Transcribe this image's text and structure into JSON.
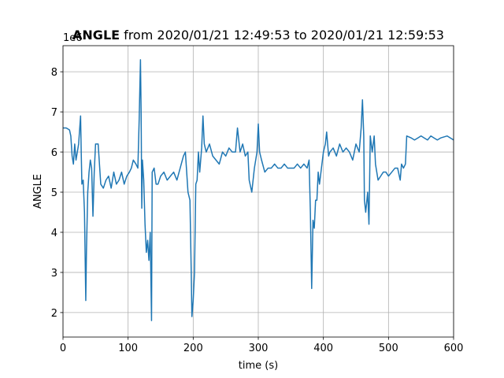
{
  "chart_data": {
    "type": "line",
    "title_bold": "ANGLE",
    "title": "from 2020/01/21 12:49:53 to 2020/01/21 12:59:53",
    "xlabel": "time (s)",
    "ylabel": "ANGLE",
    "offset_label": "1e6",
    "color": "#1f77b4",
    "grid": true,
    "xlim": [
      0,
      600
    ],
    "xticks": [
      0,
      100,
      200,
      300,
      400,
      500,
      600
    ],
    "ylim": [
      1.39,
      8.65
    ],
    "yticks": [
      2,
      3,
      4,
      5,
      6,
      7,
      8
    ],
    "x": [
      0,
      5,
      10,
      12,
      14,
      16,
      18,
      20,
      24,
      27,
      28,
      29,
      31,
      33,
      35,
      36,
      38,
      40,
      42,
      44,
      46,
      48,
      50,
      54,
      56,
      58,
      62,
      66,
      70,
      74,
      78,
      82,
      86,
      90,
      94,
      98,
      102,
      105,
      108,
      112,
      115,
      117,
      119,
      120,
      121,
      122,
      124,
      126,
      128,
      130,
      132,
      134,
      136,
      137,
      140,
      143,
      146,
      150,
      155,
      160,
      165,
      170,
      175,
      180,
      185,
      188,
      192,
      195,
      197,
      198,
      200,
      202,
      204,
      206,
      208,
      210,
      213,
      215,
      217,
      220,
      225,
      230,
      235,
      240,
      245,
      250,
      255,
      260,
      265,
      268,
      272,
      276,
      280,
      284,
      286,
      290,
      294,
      298,
      300,
      302,
      305,
      310,
      315,
      320,
      325,
      330,
      335,
      340,
      345,
      350,
      355,
      360,
      365,
      370,
      375,
      378,
      380,
      382,
      384,
      386,
      388,
      390,
      392,
      394,
      397,
      400,
      403,
      405,
      408,
      410,
      415,
      420,
      425,
      430,
      435,
      440,
      445,
      450,
      455,
      458,
      460,
      462,
      463,
      465,
      468,
      470,
      472,
      475,
      478,
      480,
      484,
      488,
      492,
      496,
      500,
      505,
      510,
      514,
      518,
      520,
      523,
      526,
      528,
      535,
      540,
      545,
      550,
      555,
      560,
      565,
      570,
      575,
      580,
      590,
      600
    ],
    "values": [
      6.6,
      6.6,
      6.55,
      6.4,
      5.9,
      5.7,
      6.2,
      5.8,
      6.2,
      6.9,
      6.0,
      5.2,
      5.3,
      4.5,
      2.3,
      3.5,
      5.0,
      5.5,
      5.8,
      5.6,
      4.4,
      5.5,
      6.2,
      6.2,
      5.7,
      5.2,
      5.1,
      5.3,
      5.4,
      5.1,
      5.5,
      5.2,
      5.3,
      5.5,
      5.2,
      5.4,
      5.5,
      5.6,
      5.8,
      5.7,
      5.6,
      6.8,
      8.3,
      7.0,
      4.6,
      5.8,
      5.3,
      4.2,
      3.5,
      3.8,
      3.3,
      4.0,
      1.8,
      5.5,
      5.6,
      5.2,
      5.2,
      5.4,
      5.5,
      5.3,
      5.4,
      5.5,
      5.3,
      5.6,
      5.9,
      6.0,
      5.0,
      4.8,
      3.0,
      1.9,
      2.3,
      3.0,
      5.2,
      5.3,
      6.0,
      5.5,
      6.1,
      6.9,
      6.2,
      6.0,
      6.2,
      5.9,
      5.8,
      5.7,
      6.0,
      5.9,
      6.1,
      6.0,
      6.0,
      6.6,
      6.0,
      6.2,
      5.9,
      6.0,
      5.3,
      5.0,
      5.6,
      6.0,
      6.7,
      6.0,
      5.8,
      5.5,
      5.6,
      5.6,
      5.7,
      5.6,
      5.6,
      5.7,
      5.6,
      5.6,
      5.6,
      5.7,
      5.6,
      5.7,
      5.6,
      5.8,
      4.5,
      2.6,
      4.3,
      4.1,
      4.8,
      4.8,
      5.5,
      5.2,
      5.6,
      6.0,
      6.2,
      6.5,
      5.9,
      6.0,
      6.1,
      5.9,
      6.2,
      6.0,
      6.1,
      6.0,
      5.8,
      6.2,
      6.0,
      6.6,
      7.3,
      6.4,
      4.8,
      4.5,
      5.0,
      4.2,
      6.4,
      6.0,
      6.4,
      5.7,
      5.3,
      5.4,
      5.5,
      5.5,
      5.4,
      5.5,
      5.6,
      5.6,
      5.3,
      5.7,
      5.6,
      5.7,
      6.4,
      6.35,
      6.3,
      6.35,
      6.4,
      6.35,
      6.3,
      6.4,
      6.35,
      6.3,
      6.35,
      6.4,
      6.3
    ]
  }
}
